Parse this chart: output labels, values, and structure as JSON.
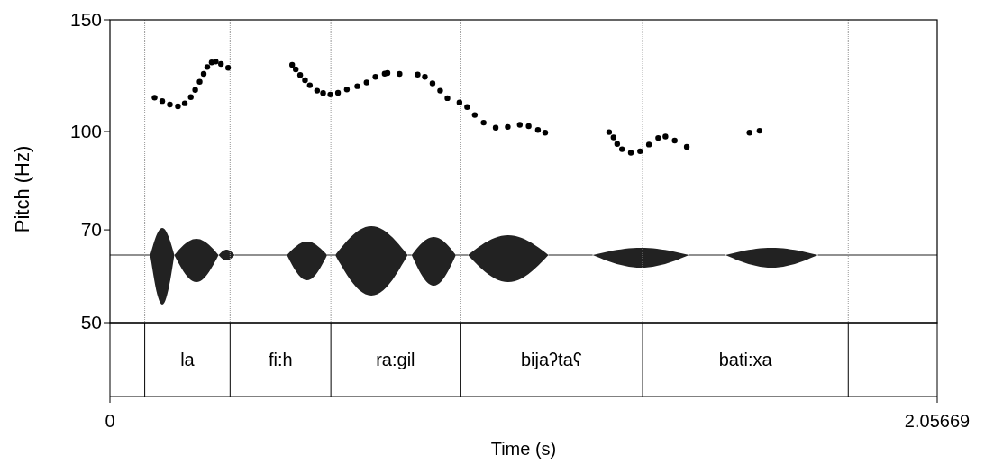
{
  "chart_data": {
    "type": "scatter",
    "xlabel": "Time (s)",
    "ylabel": "Pitch (Hz)",
    "xlim": [
      0,
      2.05669
    ],
    "xticks": [
      0,
      2.05669
    ],
    "ylim": [
      50,
      150
    ],
    "yticks": [
      50,
      70,
      100,
      150
    ],
    "log": true,
    "marker": "circle",
    "series": [
      {
        "color": "#000000",
        "x": [
          0.111,
          0.13,
          0.149,
          0.169,
          0.186,
          0.201,
          0.212,
          0.223,
          0.233,
          0.242,
          0.253,
          0.263,
          0.276,
          0.294,
          0.453,
          0.462,
          0.473,
          0.485,
          0.497,
          0.515,
          0.53,
          0.548,
          0.567,
          0.589,
          0.615,
          0.638,
          0.66,
          0.683,
          0.69,
          0.72,
          0.765,
          0.783,
          0.802,
          0.821,
          0.839,
          0.869,
          0.888,
          0.907,
          0.929,
          0.959,
          0.989,
          1.019,
          1.041,
          1.064,
          1.082,
          1.241,
          1.252,
          1.261,
          1.273,
          1.295,
          1.318,
          1.34,
          1.363,
          1.381,
          1.404,
          1.434,
          1.59,
          1.615
        ],
        "values": [
          113.1,
          111.7,
          110.3,
          109.6,
          110.8,
          113.3,
          116.3,
          119.8,
          123.3,
          126.4,
          128.5,
          128.9,
          127.8,
          126.0,
          127.4,
          125.3,
          122.8,
          120.5,
          118.3,
          116.0,
          115.0,
          114.4,
          115.1,
          116.5,
          117.9,
          119.5,
          122.0,
          123.4,
          123.7,
          123.3,
          123.0,
          122.0,
          119.1,
          116.0,
          112.9,
          111.1,
          109.3,
          106.2,
          103.3,
          101.4,
          101.7,
          102.5,
          102.0,
          100.6,
          99.6,
          99.8,
          97.9,
          95.6,
          93.8,
          92.6,
          93.1,
          95.4,
          97.7,
          98.2,
          96.8,
          94.6,
          99.6,
          100.3
        ]
      }
    ],
    "ref_lines": [
      {
        "axis": "x",
        "value": 0.0865,
        "line_style": "dotted",
        "color": "#999999"
      },
      {
        "axis": "x",
        "value": 0.2987,
        "line_style": "dotted",
        "color": "#999999"
      },
      {
        "axis": "x",
        "value": 0.5492,
        "line_style": "dotted",
        "color": "#999999"
      },
      {
        "axis": "x",
        "value": 0.8707,
        "line_style": "dotted",
        "color": "#999999"
      },
      {
        "axis": "x",
        "value": 1.3242,
        "line_style": "dotted",
        "color": "#999999"
      },
      {
        "axis": "x",
        "value": 1.8355,
        "line_style": "dotted",
        "color": "#999999"
      }
    ],
    "annotations": [
      "la",
      "fi:h",
      "ra:gil",
      "bijaʔtaʕ",
      "bati:xa"
    ],
    "grid": false
  }
}
